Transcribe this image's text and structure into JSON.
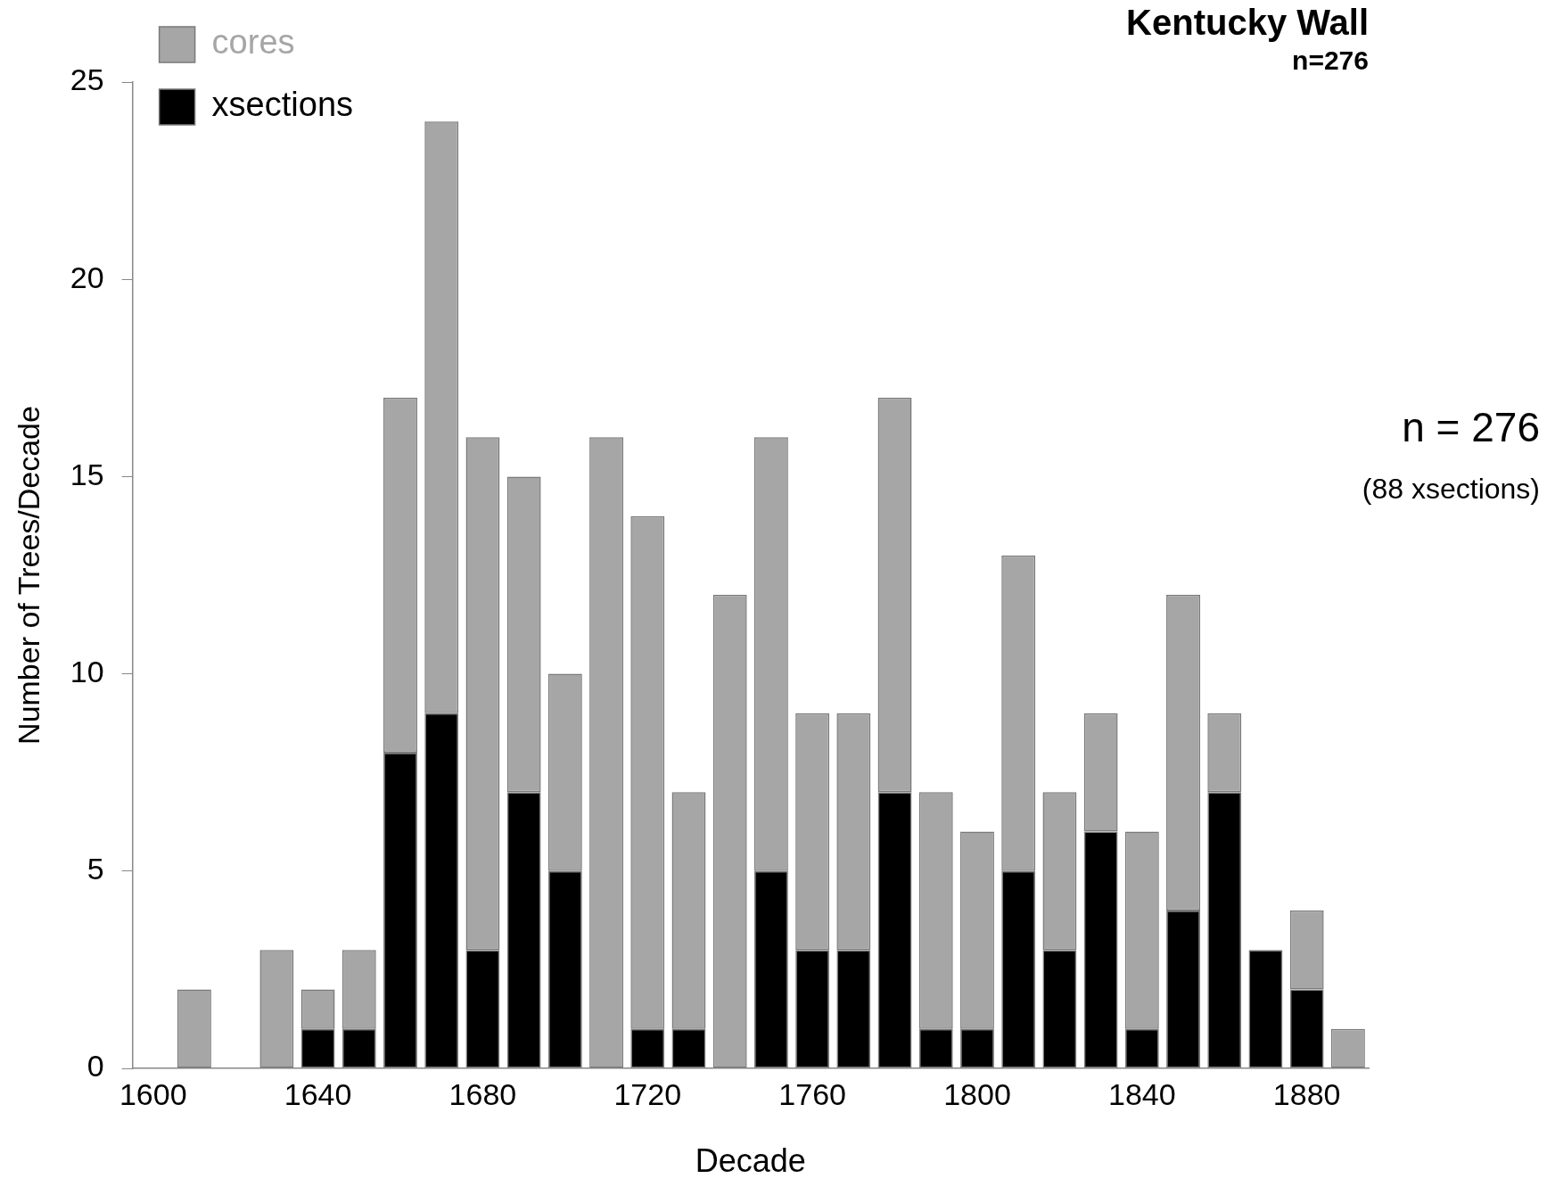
{
  "chart_data": {
    "type": "bar",
    "title": "Kentucky Wall",
    "subtitle": "n=276",
    "xlabel": "Decade",
    "ylabel": "Number of Trees/Decade",
    "annotations": [
      "n = 276",
      "(88 xsections)"
    ],
    "x": [
      1610,
      1620,
      1630,
      1640,
      1650,
      1660,
      1670,
      1680,
      1690,
      1700,
      1710,
      1720,
      1730,
      1740,
      1750,
      1760,
      1770,
      1780,
      1790,
      1800,
      1810,
      1820,
      1830,
      1840,
      1850,
      1860,
      1870,
      1880,
      1890
    ],
    "stacked": true,
    "series": [
      {
        "name": "xsections",
        "color": "#000000",
        "values": [
          0,
          null,
          0,
          1,
          1,
          8,
          9,
          3,
          7,
          5,
          0,
          1,
          1,
          0,
          5,
          3,
          3,
          7,
          1,
          1,
          5,
          3,
          6,
          1,
          4,
          7,
          3,
          2,
          0
        ]
      },
      {
        "name": "cores",
        "color": "#a6a6a6",
        "values": [
          2,
          null,
          3,
          1,
          2,
          9,
          15,
          13,
          8,
          5,
          16,
          13,
          6,
          12,
          11,
          6,
          6,
          10,
          6,
          5,
          8,
          4,
          3,
          5,
          8,
          2,
          0,
          2,
          1
        ]
      }
    ],
    "xlim": [
      1595,
      1895
    ],
    "xticks": [
      1600,
      1640,
      1680,
      1720,
      1760,
      1800,
      1840,
      1880
    ],
    "ylim": [
      0,
      25
    ],
    "yticks": [
      0,
      5,
      10,
      15,
      20,
      25
    ],
    "grid": false,
    "legend": "top left"
  }
}
